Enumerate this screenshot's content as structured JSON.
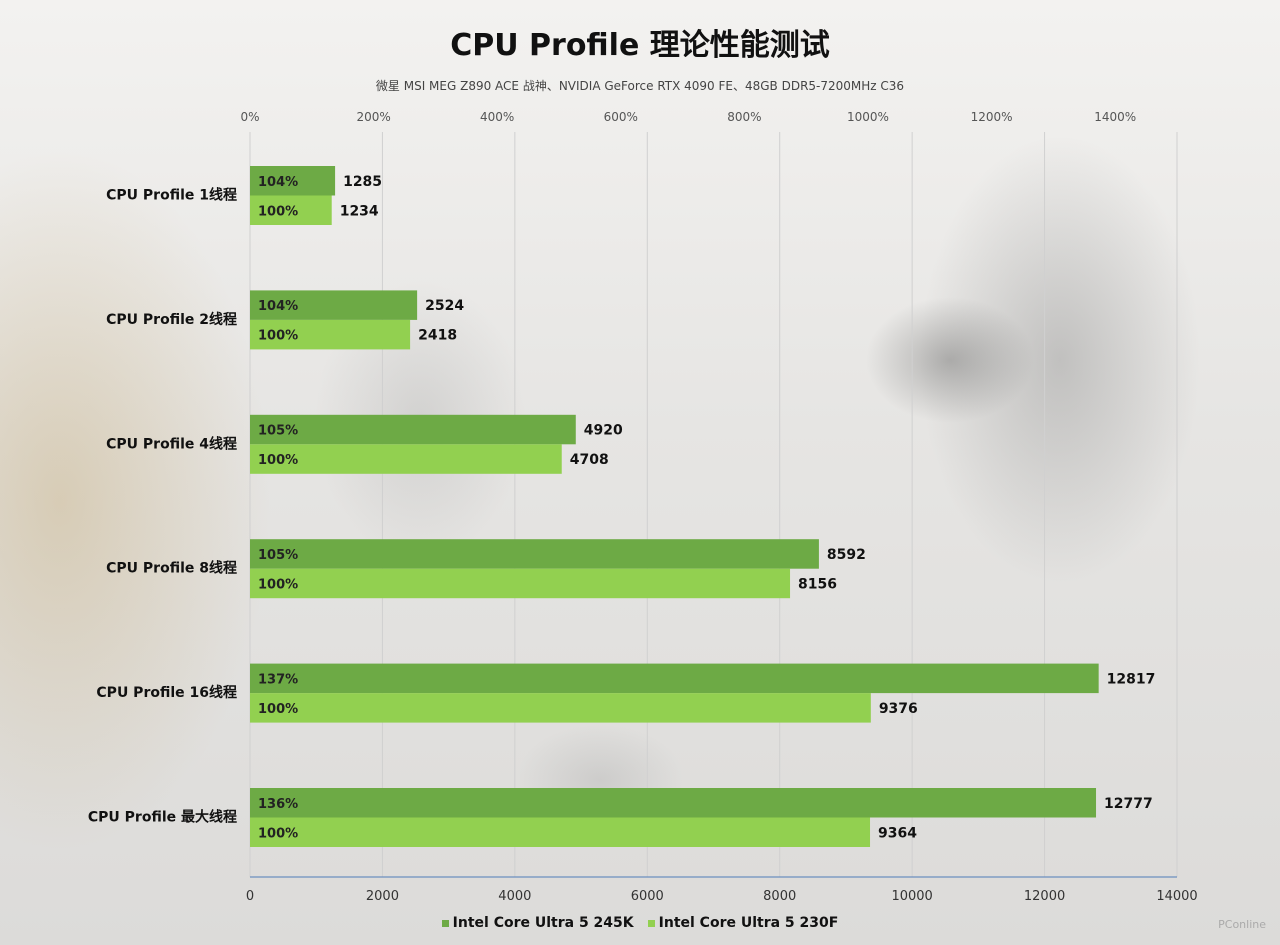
{
  "title": "CPU Profile 理论性能测试",
  "subtitle": "微星 MSI MEG Z890 ACE 战神、NVIDIA GeForce RTX 4090 FE、48GB DDR5-7200MHz C36",
  "watermark": "PConline",
  "colors": {
    "series_a": "#6daa45",
    "series_b": "#92d050",
    "grid": "#d0d0d0",
    "axis": "#6c8ebf"
  },
  "chart_data": {
    "type": "bar",
    "orientation": "horizontal",
    "title": "CPU Profile 理论性能测试",
    "categories": [
      "CPU Profile 1线程",
      "CPU Profile 2线程",
      "CPU Profile 4线程",
      "CPU Profile 8线程",
      "CPU Profile 16线程",
      "CPU Profile 最大线程"
    ],
    "series": [
      {
        "name": "Intel Core Ultra 5 245K",
        "values": [
          1285,
          2524,
          4920,
          8592,
          12817,
          12777
        ],
        "percent_labels": [
          "104%",
          "104%",
          "105%",
          "105%",
          "137%",
          "136%"
        ]
      },
      {
        "name": "Intel Core Ultra 5 230F",
        "values": [
          1234,
          2418,
          4708,
          8156,
          9376,
          9364
        ],
        "percent_labels": [
          "100%",
          "100%",
          "100%",
          "100%",
          "100%",
          "100%"
        ]
      }
    ],
    "x_axis": {
      "min": 0,
      "max": 14000,
      "ticks": [
        "0",
        "2000",
        "4000",
        "6000",
        "8000",
        "10000",
        "12000",
        "14000"
      ]
    },
    "x2_axis": {
      "min": 0,
      "max": 1500,
      "ticks": [
        "0%",
        "200%",
        "400%",
        "600%",
        "800%",
        "1000%",
        "1200%",
        "1400%"
      ]
    },
    "grid": true,
    "legend_position": "bottom"
  }
}
